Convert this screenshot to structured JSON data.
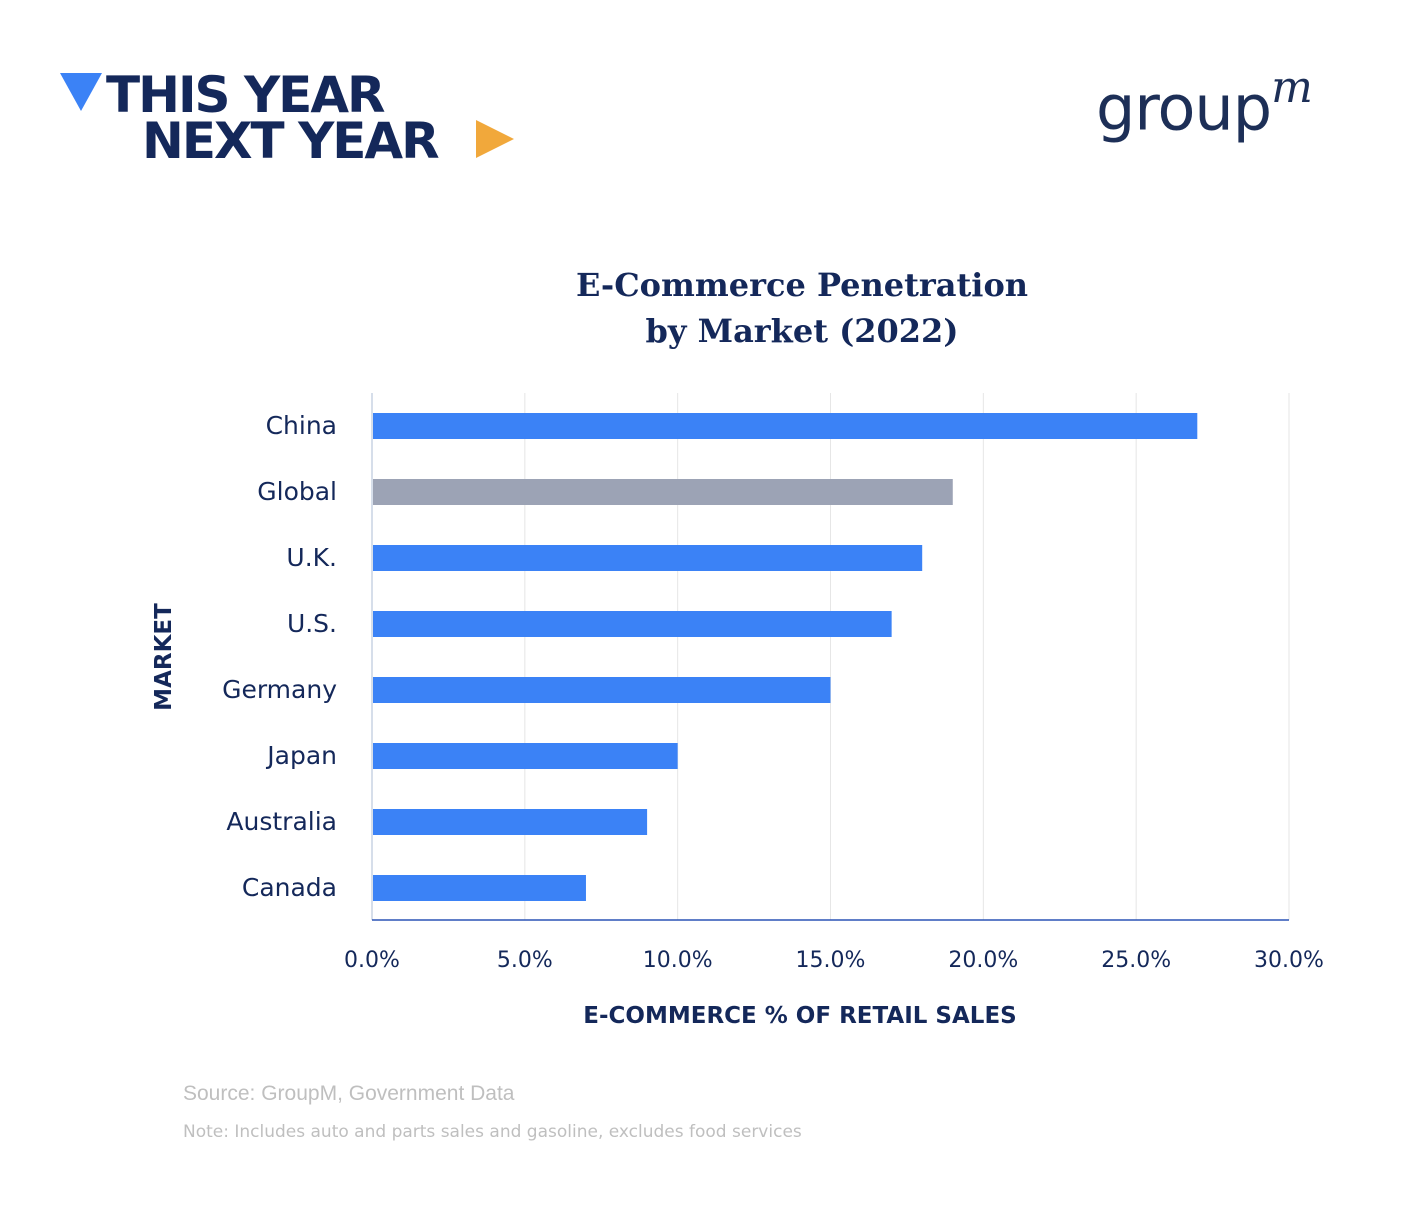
{
  "brand": {
    "line1": "THIS YEAR",
    "line2": "NEXT YEAR",
    "logo": "groupm",
    "accent_blue": "#3b82f6",
    "accent_orange": "#f1a83b"
  },
  "chart_data": {
    "type": "bar",
    "orientation": "horizontal",
    "title_line1": "E-Commerce Penetration",
    "title_line2": "by Market (2022)",
    "xlabel": "E-COMMERCE % OF RETAIL SALES",
    "ylabel": "MARKET",
    "categories": [
      "China",
      "Global",
      "U.K.",
      "U.S.",
      "Germany",
      "Japan",
      "Australia",
      "Canada"
    ],
    "values": [
      27,
      19,
      18,
      17,
      15,
      10,
      9,
      7
    ],
    "colors": [
      "#3b82f6",
      "#9ca3b5",
      "#3b82f6",
      "#3b82f6",
      "#3b82f6",
      "#3b82f6",
      "#3b82f6",
      "#3b82f6"
    ],
    "xlim": [
      0,
      30
    ],
    "xticks": [
      "0.0%",
      "5.0%",
      "10.0%",
      "15.0%",
      "20.0%",
      "25.0%",
      "30.0%"
    ],
    "grid": "vertical"
  },
  "footer": {
    "source": "Source: GroupM, Government Data",
    "note": "Note: Includes auto and parts sales and gasoline, excludes food services"
  }
}
